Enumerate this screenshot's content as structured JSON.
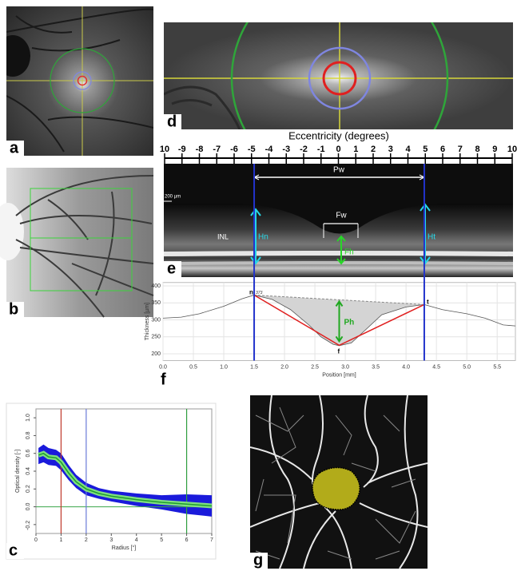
{
  "panels": {
    "a": "a",
    "b": "b",
    "c": "c",
    "d": "d",
    "e": "e",
    "f": "f",
    "g": "g"
  },
  "eccentricity": {
    "title": "Eccentricity (degrees)",
    "ticks": [
      {
        "value": -10,
        "label": "10"
      },
      -9,
      -8,
      -7,
      -6,
      -5,
      -4,
      -3,
      -2,
      -1,
      0,
      1,
      2,
      3,
      4,
      5,
      6,
      7,
      8,
      9,
      10
    ]
  },
  "oct": {
    "pw": "Pw",
    "fw": "Fw",
    "hn": "Hn",
    "ht": "Ht",
    "fh": "Fh",
    "inl": "INL",
    "scale": "200 µm"
  },
  "thickness_chart": {
    "type": "line",
    "ylabel": "Thickness [µm]",
    "xlabel": "Position [mm]",
    "xlim": [
      0,
      5.8
    ],
    "ylim": [
      180,
      410
    ],
    "yticks": [
      200,
      250,
      300,
      350,
      400
    ],
    "xticks": [
      {
        "value": 0,
        "label": "0.0"
      },
      0.5,
      {
        "value": 1,
        "label": "1.0"
      },
      1.5,
      {
        "value": 2,
        "label": "2.0"
      },
      2.5,
      {
        "value": 3,
        "label": "3.0"
      },
      3.5,
      {
        "value": 4,
        "label": "4.0"
      },
      4.5,
      {
        "value": 5,
        "label": "5.0"
      },
      5.5
    ],
    "x": [
      0,
      0.3,
      0.6,
      1,
      1.3,
      1.5,
      1.8,
      2.1,
      2.4,
      2.6,
      2.8,
      2.9,
      3.1,
      3.3,
      3.6,
      4,
      4.3,
      4.6,
      5,
      5.3,
      5.6,
      5.8
    ],
    "values": [
      305,
      308,
      318,
      340,
      362,
      373,
      360,
      330,
      285,
      250,
      228,
      224,
      232,
      265,
      315,
      338,
      345,
      330,
      318,
      305,
      285,
      282
    ],
    "points": [
      {
        "name": "n",
        "x": 1.5,
        "y": 373
      },
      {
        "name": "f",
        "x": 2.9,
        "y": 225
      },
      {
        "name": "t",
        "x": 4.3,
        "y": 345
      }
    ],
    "peak_label": "373",
    "ph": "Ph"
  },
  "od_chart": {
    "type": "line",
    "ylabel": "Optical density [-]",
    "xlabel": "Radius [°]",
    "xlim": [
      0,
      7
    ],
    "ylim": [
      -0.3,
      1.1
    ],
    "yticks": [
      {
        "value": 1,
        "label": "1.0"
      },
      0.8,
      0.6,
      0.4,
      0.2,
      {
        "value": 0,
        "label": "0.0"
      },
      -0.2
    ],
    "xticks": [
      0,
      1,
      2,
      3,
      4,
      5,
      6,
      7
    ],
    "reference_lines": [
      {
        "x": 1,
        "color": "#c0392b"
      },
      {
        "x": 2,
        "color": "#6a7bd8"
      },
      {
        "x": 6,
        "color": "#2e9e3e"
      }
    ],
    "baseline": {
      "y": 0,
      "color": "#3aa64a"
    },
    "x": [
      0.1,
      0.3,
      0.5,
      0.8,
      1.0,
      1.3,
      1.6,
      2.0,
      2.5,
      3,
      4,
      5,
      6,
      7
    ],
    "values": [
      0.58,
      0.6,
      0.56,
      0.55,
      0.5,
      0.38,
      0.28,
      0.2,
      0.15,
      0.12,
      0.08,
      0.05,
      0.03,
      0.01
    ],
    "upper": [
      0.66,
      0.7,
      0.66,
      0.64,
      0.6,
      0.47,
      0.36,
      0.27,
      0.21,
      0.18,
      0.15,
      0.13,
      0.14,
      0.13
    ],
    "lower": [
      0.48,
      0.5,
      0.47,
      0.46,
      0.41,
      0.3,
      0.21,
      0.13,
      0.09,
      0.06,
      0.01,
      -0.03,
      -0.08,
      -0.11
    ]
  }
}
